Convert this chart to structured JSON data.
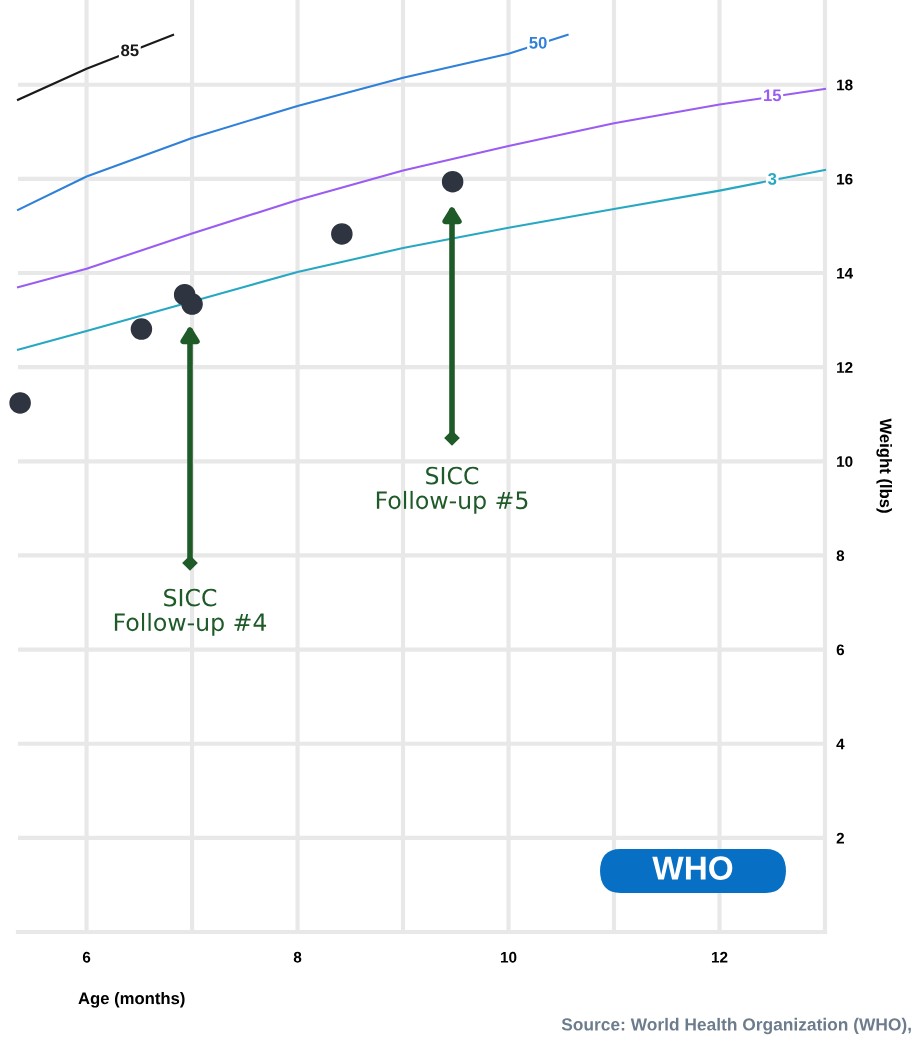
{
  "chart_data": {
    "type": "line",
    "xlabel": "Age (months)",
    "ylabel": "Weight (lbs)",
    "xlim": [
      5.35,
      13
    ],
    "ylim": [
      0,
      19.8
    ],
    "xticks": [
      6,
      {
        "value": 7,
        "label": null
      },
      8,
      {
        "value": 9,
        "label": null
      },
      10,
      {
        "value": 11,
        "label": null
      },
      12
    ],
    "yticks": [
      2,
      4,
      6,
      8,
      10,
      12,
      14,
      16,
      18
    ],
    "grid": true,
    "legend": false,
    "tick_labels": "xy",
    "series": [
      {
        "name": "85",
        "color": "#1a1a1a",
        "marker": "none",
        "x": [
          5.35,
          6,
          6.82
        ],
        "values": [
          17.68,
          18.34,
          19.06
        ]
      },
      {
        "name": "50",
        "color": "#2f80d8",
        "marker": "none",
        "x": [
          5.35,
          6,
          7,
          8,
          9,
          10,
          10.56
        ],
        "values": [
          15.34,
          16.05,
          16.87,
          17.55,
          18.15,
          18.66,
          19.06
        ]
      },
      {
        "name": "15",
        "color": "#9a5cf2",
        "marker": "none",
        "x": [
          5.35,
          6,
          7,
          8,
          9,
          10,
          11,
          12,
          13
        ],
        "values": [
          13.7,
          14.09,
          14.84,
          15.55,
          16.18,
          16.7,
          17.18,
          17.58,
          17.91
        ]
      },
      {
        "name": "3",
        "color": "#27a8c2",
        "marker": "none",
        "x": [
          5.35,
          6,
          7.5,
          8,
          9,
          10,
          11,
          12,
          13
        ],
        "values": [
          12.37,
          12.77,
          13.71,
          14.02,
          14.53,
          14.96,
          15.36,
          15.75,
          16.19
        ]
      },
      {
        "color": "#2e3440",
        "type": "scatter",
        "marker": "circle",
        "x": [
          5.37,
          6.52,
          6.93,
          7.0,
          8.42,
          9.47
        ],
        "values": [
          11.24,
          12.81,
          13.54,
          13.34,
          14.83,
          15.94
        ]
      }
    ],
    "annotations": [
      "SICC\nFollow-up #4",
      "SICC\nFollow-up #5",
      "WHO",
      "Source: World Health Organization (WHO),"
    ]
  }
}
